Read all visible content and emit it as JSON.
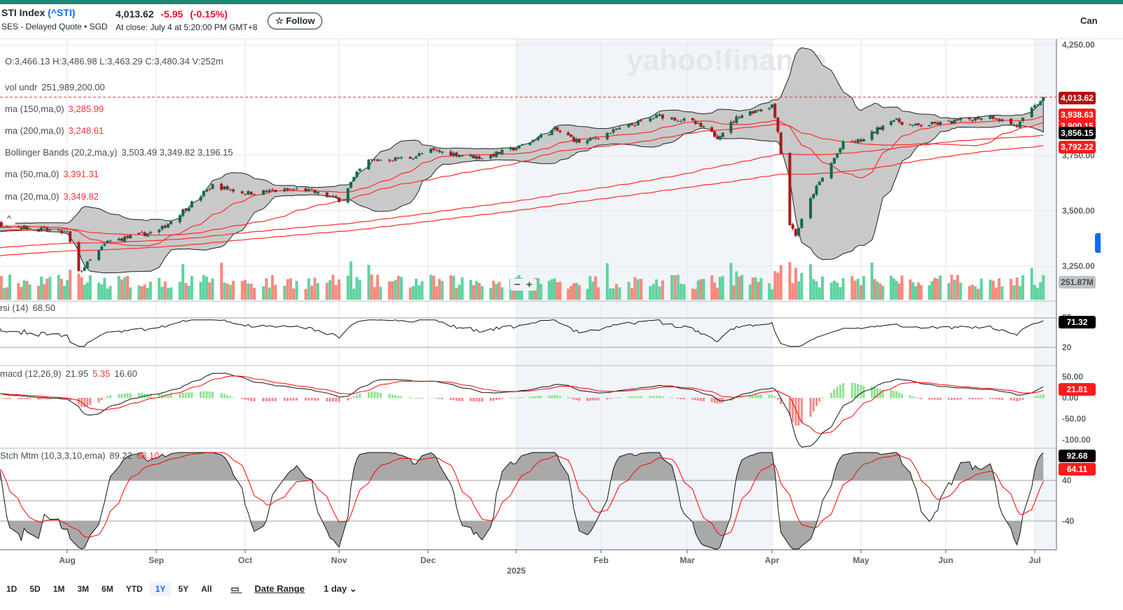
{
  "header": {
    "name": "STI Index",
    "symbol": "(^STI)",
    "exchange": "SES - Delayed Quote • SGD",
    "price": "4,013.62",
    "change": "-5.95",
    "change_pct": "(-0.15%)",
    "close_time": "At close: July 4 at 5:20:00 PM GMT+8",
    "follow_label": "☆ Follow",
    "cancel_label": "Can"
  },
  "legend": {
    "ohlcv": "O:3,466.13  H:3,486.98  L:3,463.29  C:3,480.34  V:252m",
    "vol_label": "vol undr",
    "vol_value": "251,989,200.00",
    "ma150_label": "ma (150,ma,0)",
    "ma150_value": "3,285.99",
    "ma200_label": "ma (200,ma,0)",
    "ma200_value": "3,248.61",
    "bb_label": "Bollinger Bands (20,2,ma,y)",
    "bb_value": "3,503.49 3,349.82 3,196.15",
    "ma50_label": "ma (50,ma,0)",
    "ma50_value": "3,391.31",
    "ma20_label": "ma (20,ma,0)",
    "ma20_value": "3,349.82",
    "rsi_label": "rsi (14)",
    "rsi_value": "68.50",
    "macd_label": "macd (12,26,9)",
    "macd_v1": "21.95",
    "macd_v2": "5.35",
    "macd_v3": "16.60",
    "stoch_label": "Stch Mtm (10,3,3,10,ema)",
    "stoch_v1": "89.22",
    "stoch_v2": "68.10"
  },
  "tags": {
    "last": "4,013.62",
    "ma20": "3,938.63",
    "ma50": "3,900.15",
    "bb_lower": "3,856.15",
    "ma150": "3,792.22",
    "volume": "251.87M",
    "rsi": "71.32",
    "macd": "21.81",
    "stoch": "92.68",
    "stoch_signal": "64.11"
  },
  "axes": {
    "price_ticks": [
      "4,250.00",
      "3,750.00",
      "3,500.00",
      "3,250.00"
    ],
    "rsi_ticks": [
      "80",
      "20"
    ],
    "macd_ticks": [
      "50.00",
      "0.00",
      "-50.00",
      "-100.00"
    ],
    "stoch_ticks": [
      "40",
      "-40"
    ],
    "months": [
      "Aug",
      "Sep",
      "Oct",
      "Nov",
      "Dec",
      "2025",
      "Feb",
      "Mar",
      "Apr",
      "May",
      "Jun",
      "Jul"
    ],
    "year_label": "2025"
  },
  "zoom": {
    "minus": "−",
    "plus": "+"
  },
  "watermark": "yahoo!finance",
  "ranges": [
    "1D",
    "5D",
    "1M",
    "3M",
    "6M",
    "YTD",
    "1Y",
    "5Y",
    "All"
  ],
  "active_range": "1Y",
  "date_range_label": "Date Range",
  "interval_label": "1 day ⌄",
  "colors": {
    "up": "#0a6b4f",
    "down": "#a51c1c",
    "vol_up": "#5fd3a0",
    "vol_down": "#f8897d",
    "ma": "#ff2a2a",
    "accent": "#1a8a73"
  },
  "chart_data": {
    "type": "candlestick",
    "price_keypoints": [
      [
        "2024-07-08",
        3440
      ],
      [
        "2024-08-01",
        3400
      ],
      [
        "2024-08-05",
        3220
      ],
      [
        "2024-08-15",
        3360
      ],
      [
        "2024-09-02",
        3410
      ],
      [
        "2024-09-20",
        3615
      ],
      [
        "2024-10-01",
        3580
      ],
      [
        "2024-10-20",
        3598
      ],
      [
        "2024-11-01",
        3550
      ],
      [
        "2024-11-10",
        3725
      ],
      [
        "2024-11-25",
        3740
      ],
      [
        "2024-12-02",
        3772
      ],
      [
        "2024-12-20",
        3740
      ],
      [
        "2025-01-02",
        3788
      ],
      [
        "2025-01-15",
        3867
      ],
      [
        "2025-01-25",
        3805
      ],
      [
        "2025-02-03",
        3850
      ],
      [
        "2025-02-10",
        3883
      ],
      [
        "2025-02-20",
        3930
      ],
      [
        "2025-03-03",
        3900
      ],
      [
        "2025-03-12",
        3835
      ],
      [
        "2025-03-20",
        3930
      ],
      [
        "2025-04-01",
        3978
      ],
      [
        "2025-04-03",
        3867
      ],
      [
        "2025-04-07",
        3440
      ],
      [
        "2025-04-09",
        3392
      ],
      [
        "2025-04-15",
        3582
      ],
      [
        "2025-04-25",
        3804
      ],
      [
        "2025-05-02",
        3820
      ],
      [
        "2025-05-12",
        3915
      ],
      [
        "2025-05-20",
        3883
      ],
      [
        "2025-06-02",
        3899
      ],
      [
        "2025-06-16",
        3930
      ],
      [
        "2025-06-25",
        3883
      ],
      [
        "2025-07-04",
        4013.62
      ]
    ],
    "ylim": [
      3150,
      4300
    ],
    "yticks": [
      3250,
      3500,
      3750,
      4250
    ],
    "last_close": 4013.62,
    "last_volume_m": 251.87
  }
}
